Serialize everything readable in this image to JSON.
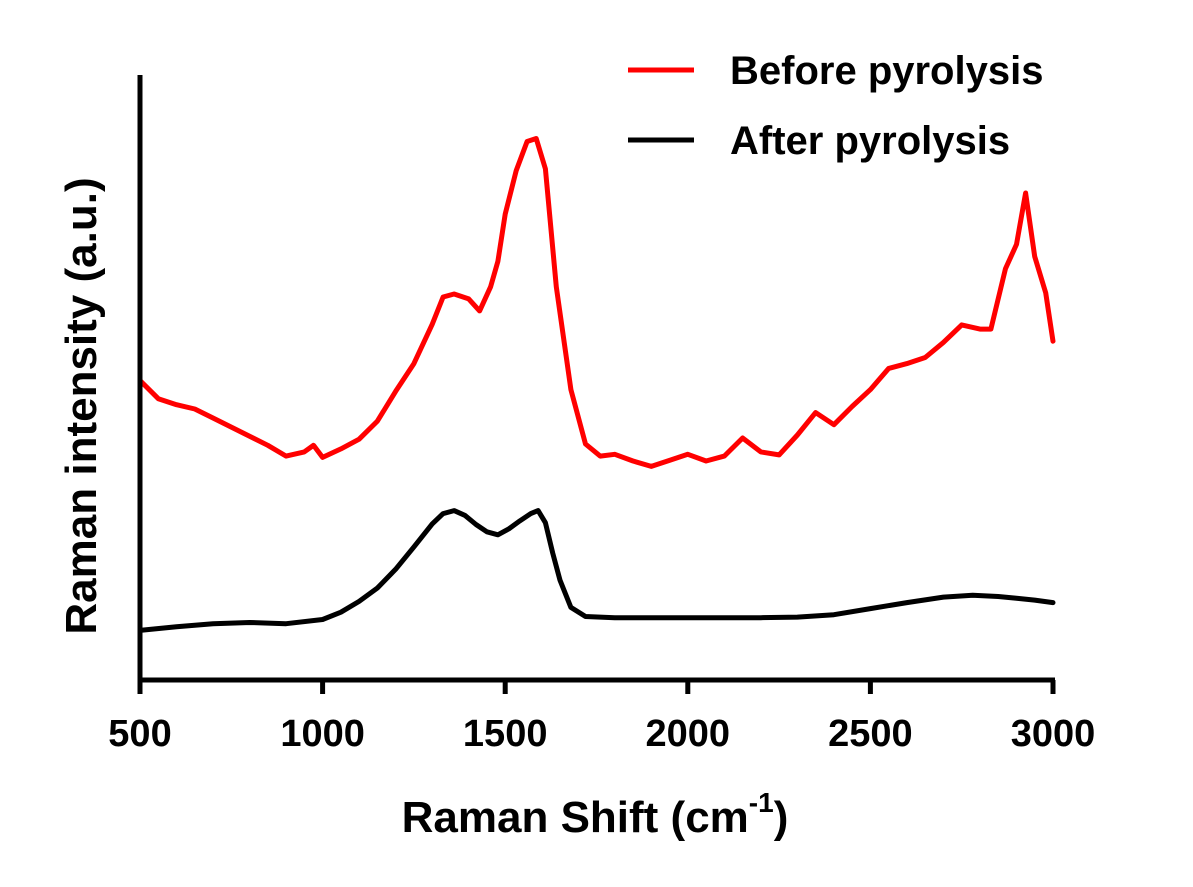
{
  "chart_data": {
    "type": "line",
    "title": "",
    "xlabel": "Raman Shift (cm",
    "xlabel_sup": "-1",
    "xlabel_close": ")",
    "ylabel": "Raman intensity (a.u.)",
    "xlim": [
      500,
      3000
    ],
    "ylim": [
      0,
      100
    ],
    "xticks": [
      500,
      1000,
      1500,
      2000,
      2500,
      3000
    ],
    "xtick_labels": [
      "500",
      "1000",
      "1500",
      "2000",
      "2500",
      "3000"
    ],
    "legend_position": "top-right",
    "series": [
      {
        "name": "Before pyrolysis",
        "color": "#ff0000",
        "x": [
          500,
          550,
          600,
          650,
          700,
          750,
          800,
          850,
          900,
          950,
          975,
          1000,
          1050,
          1100,
          1150,
          1200,
          1250,
          1300,
          1330,
          1360,
          1400,
          1430,
          1460,
          1480,
          1500,
          1530,
          1560,
          1585,
          1610,
          1640,
          1680,
          1720,
          1760,
          1800,
          1850,
          1900,
          1950,
          2000,
          2050,
          2100,
          2150,
          2200,
          2250,
          2300,
          2350,
          2400,
          2450,
          2500,
          2550,
          2600,
          2650,
          2700,
          2750,
          2800,
          2830,
          2870,
          2900,
          2925,
          2950,
          2980,
          3000
        ],
        "values": [
          49.5,
          46.5,
          45.5,
          44.8,
          43.3,
          41.8,
          40.3,
          38.8,
          37.0,
          37.7,
          38.8,
          36.8,
          38.2,
          39.8,
          42.8,
          47.7,
          52.3,
          58.8,
          63.3,
          63.8,
          63.0,
          61.0,
          65.0,
          69.2,
          77.0,
          84.2,
          89.0,
          89.5,
          84.5,
          65.0,
          48.0,
          39.0,
          37.0,
          37.3,
          36.2,
          35.3,
          36.3,
          37.3,
          36.2,
          37.0,
          40.0,
          37.7,
          37.2,
          40.5,
          44.2,
          42.2,
          45.2,
          48.0,
          51.5,
          52.3,
          53.3,
          55.8,
          58.7,
          58.0,
          58.0,
          68.0,
          72.0,
          80.5,
          70.0,
          64.0,
          56.0
        ]
      },
      {
        "name": "After pyrolysis",
        "color": "#000000",
        "x": [
          500,
          600,
          700,
          800,
          900,
          1000,
          1050,
          1100,
          1150,
          1200,
          1250,
          1300,
          1330,
          1360,
          1390,
          1420,
          1450,
          1480,
          1510,
          1540,
          1570,
          1590,
          1610,
          1630,
          1650,
          1680,
          1720,
          1800,
          1900,
          2000,
          2100,
          2200,
          2300,
          2400,
          2500,
          2600,
          2700,
          2780,
          2850,
          2900,
          2950,
          3000
        ],
        "values": [
          8.2,
          8.8,
          9.3,
          9.5,
          9.3,
          10.0,
          11.2,
          13.0,
          15.2,
          18.3,
          22.0,
          25.8,
          27.5,
          28.0,
          27.2,
          25.7,
          24.5,
          24.0,
          25.0,
          26.3,
          27.5,
          28.0,
          26.0,
          21.0,
          16.5,
          12.0,
          10.5,
          10.3,
          10.3,
          10.3,
          10.3,
          10.3,
          10.4,
          10.8,
          11.8,
          12.8,
          13.7,
          14.0,
          13.8,
          13.5,
          13.2,
          12.8
        ]
      }
    ]
  }
}
